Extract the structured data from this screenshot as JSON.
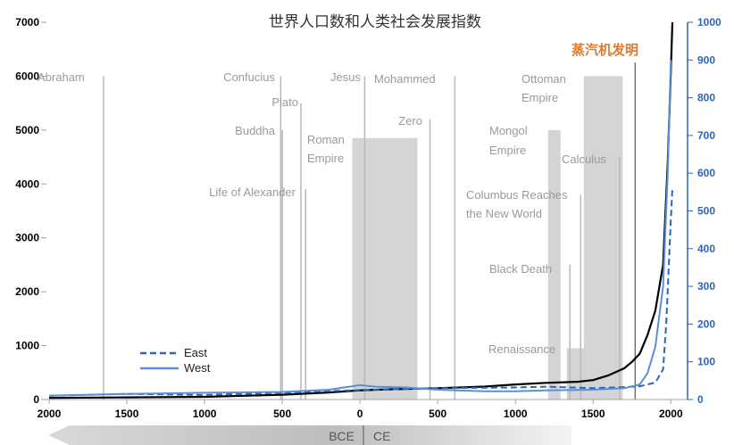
{
  "chart_data": {
    "type": "line",
    "title": "世界人口数和人类社会发展指数",
    "x_axis": {
      "ticks": [
        2000,
        1500,
        1000,
        500,
        0,
        500,
        1000,
        1500,
        2000
      ],
      "range": [
        -2000,
        2050
      ]
    },
    "y_left": {
      "ticks": [
        0,
        1000,
        2000,
        3000,
        4000,
        5000,
        6000,
        7000
      ],
      "range": [
        0,
        7000
      ]
    },
    "y_right": {
      "ticks": [
        0,
        100,
        200,
        300,
        400,
        500,
        600,
        700,
        800,
        900,
        1000
      ],
      "range": [
        0,
        1000
      ],
      "color": "#2a66b8"
    },
    "era_labels": {
      "bce": "BCE",
      "ce": "CE"
    },
    "series": [
      {
        "axis": "left",
        "color": "#000000",
        "style": "solid",
        "x": [
          -2000,
          -1500,
          -1000,
          -500,
          -200,
          0,
          200,
          500,
          800,
          1000,
          1200,
          1400,
          1500,
          1600,
          1700,
          1750,
          1800,
          1850,
          1900,
          1950,
          1980,
          2000,
          2010
        ],
        "y": [
          30,
          40,
          50,
          90,
          130,
          170,
          190,
          210,
          240,
          280,
          310,
          330,
          360,
          450,
          580,
          700,
          850,
          1200,
          1650,
          2500,
          4400,
          6100,
          7000
        ]
      },
      {
        "name": "East",
        "axis": "right",
        "color": "#2a66b8",
        "style": "dashed",
        "x": [
          -2000,
          -1500,
          -1000,
          -500,
          0,
          500,
          1000,
          1200,
          1500,
          1700,
          1800,
          1900,
          1950,
          1970,
          2000,
          2010
        ],
        "y": [
          10,
          15,
          12,
          18,
          25,
          30,
          32,
          34,
          30,
          33,
          35,
          45,
          80,
          200,
          480,
          560
        ]
      },
      {
        "name": "West",
        "axis": "right",
        "color": "#5b8fd6",
        "style": "solid",
        "x": [
          -2000,
          -1500,
          -1000,
          -500,
          -200,
          0,
          100,
          300,
          500,
          800,
          1000,
          1200,
          1500,
          1700,
          1800,
          1850,
          1900,
          1950,
          1980,
          2000
        ],
        "y": [
          10,
          15,
          18,
          20,
          26,
          38,
          34,
          32,
          26,
          22,
          22,
          24,
          26,
          30,
          40,
          70,
          140,
          300,
          600,
          900
        ]
      }
    ],
    "legend": {
      "position": "bottom-left"
    },
    "annotations": {
      "lines": [
        {
          "label": "Abraham",
          "x": -1650,
          "top": 6000
        },
        {
          "label": "Confucius",
          "x": -510,
          "top": 6000
        },
        {
          "label": "Buddha",
          "x": -500,
          "top": 5000
        },
        {
          "label": "Plato",
          "x": -380,
          "top": 5500
        },
        {
          "label": "Life of Alexander",
          "x": -350,
          "top": 3900
        },
        {
          "label": "Jesus",
          "x": 30,
          "top": 6000
        },
        {
          "label": "Zero",
          "x": 450,
          "top": 5200
        },
        {
          "label": "Mohammed",
          "x": 610,
          "top": 6000
        },
        {
          "label": "Columbus Reaches the New World",
          "x": 1420,
          "top": 3800
        },
        {
          "label": "Black Death",
          "x": 1350,
          "top": 2500
        },
        {
          "label": "Calculus",
          "x": 1670,
          "top": 4500
        }
      ],
      "boxes": [
        {
          "label": "Roman Empire",
          "x0": -50,
          "x1": 370,
          "top": 4850
        },
        {
          "label": "Mongol Empire",
          "x0": 1210,
          "x1": 1290,
          "top": 5000
        },
        {
          "label": "Ottoman Empire",
          "x0": 1440,
          "x1": 1690,
          "top": 6000
        },
        {
          "label": "Renaissance",
          "x0": 1330,
          "x1": 1520,
          "top": 950
        }
      ],
      "steam": {
        "label": "蒸汽机发明",
        "x": 1770
      }
    }
  }
}
